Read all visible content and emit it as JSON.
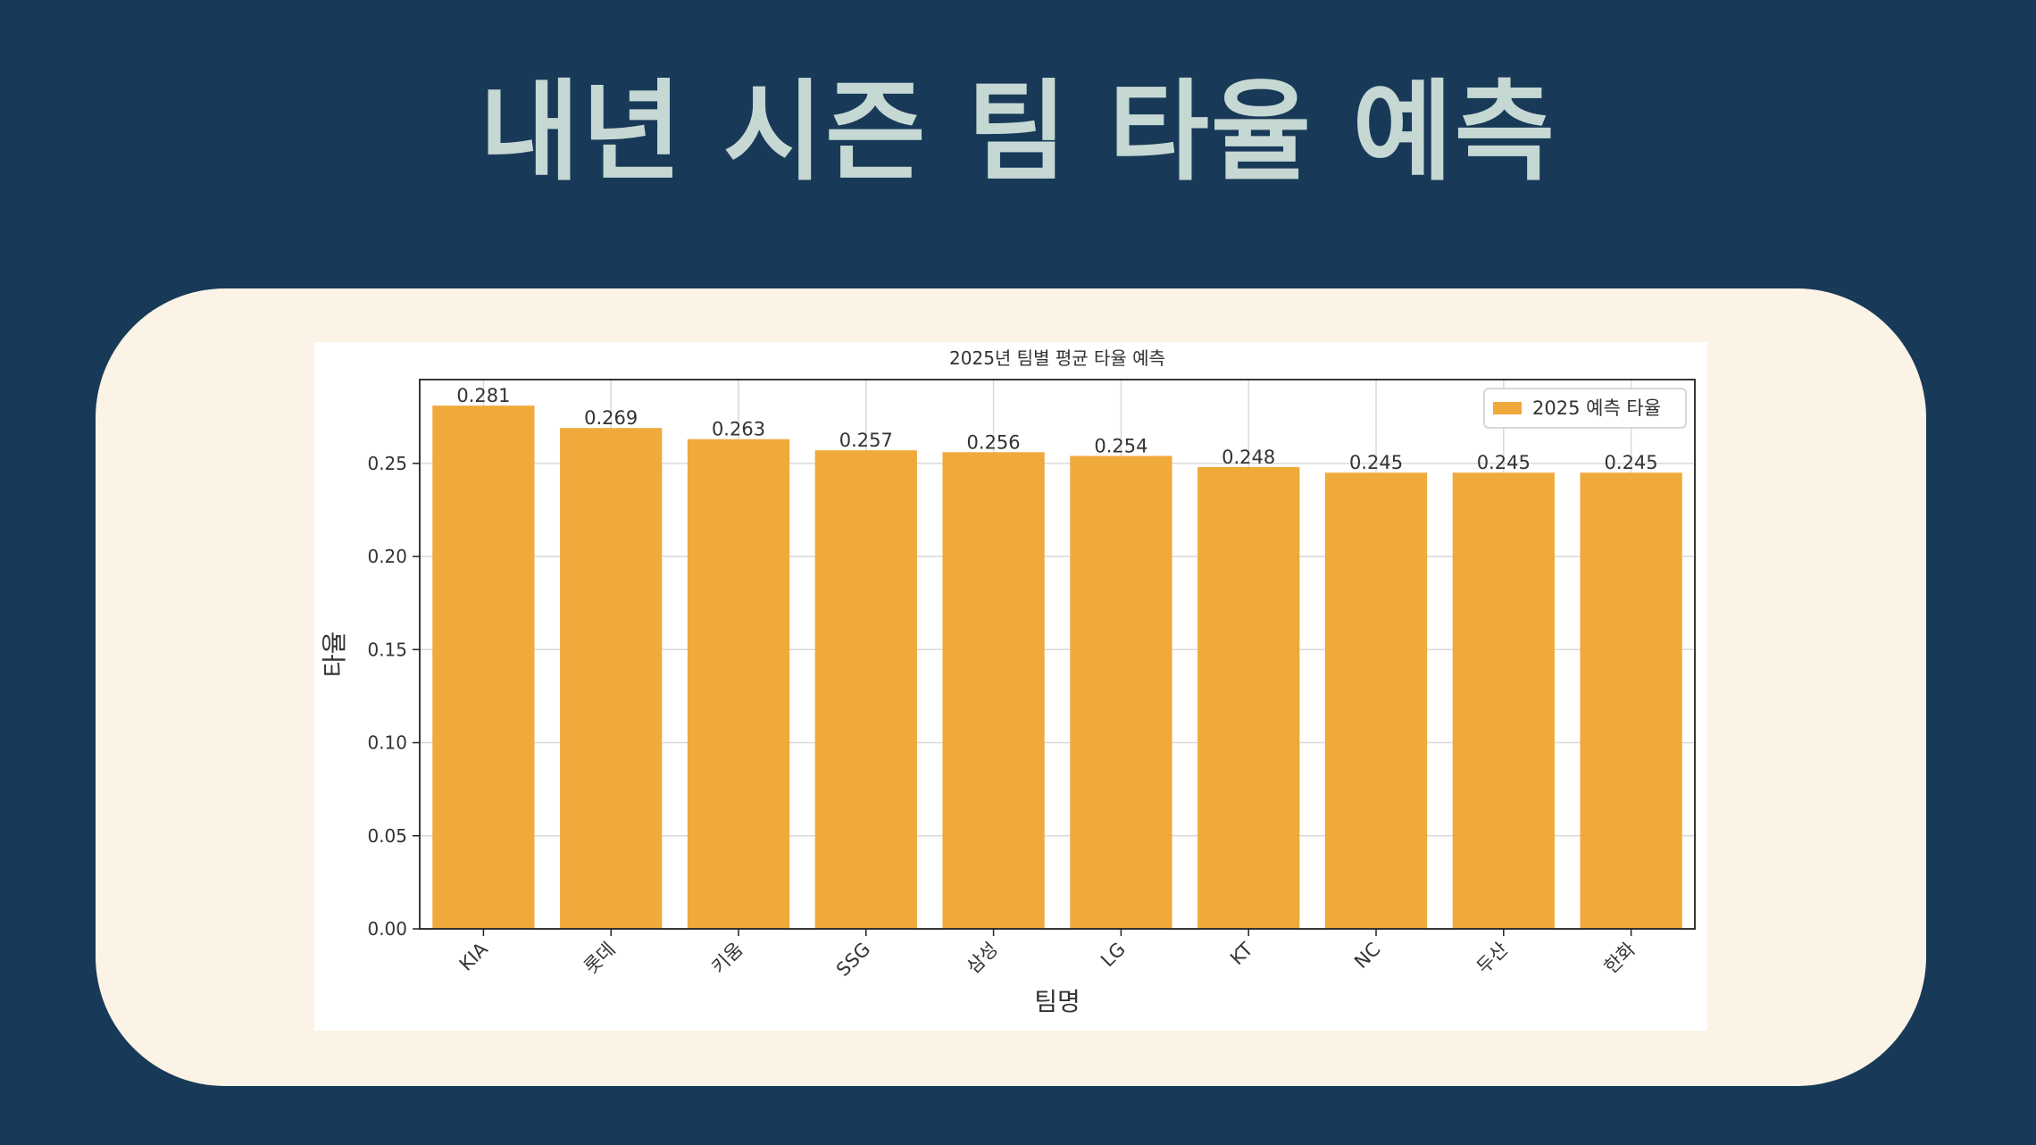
{
  "slide": {
    "title": "내년 시즌 팀 타율 예측"
  },
  "chart_data": {
    "type": "bar",
    "title": "2025년 팀별 평균 타율 예측",
    "xlabel": "팀명",
    "ylabel": "타율",
    "categories": [
      "KIA",
      "롯데",
      "키움",
      "SSG",
      "삼성",
      "LG",
      "KT",
      "NC",
      "두산",
      "한화"
    ],
    "series": [
      {
        "name": "2025 예측 타율",
        "values": [
          0.281,
          0.269,
          0.263,
          0.257,
          0.256,
          0.254,
          0.248,
          0.245,
          0.245,
          0.245
        ]
      }
    ],
    "data_labels": [
      "0.281",
      "0.269",
      "0.263",
      "0.257",
      "0.256",
      "0.254",
      "0.248",
      "0.245",
      "0.245",
      "0.245"
    ],
    "yticks": [
      "0.00",
      "0.05",
      "0.10",
      "0.15",
      "0.20",
      "0.25"
    ],
    "ylim": [
      0,
      0.295
    ],
    "grid": true,
    "legend_position": "top-right",
    "colors": {
      "bar": "#f0a93b",
      "background": "#183a58",
      "card": "#fbf3e6",
      "title": "#c6d8d3"
    }
  }
}
